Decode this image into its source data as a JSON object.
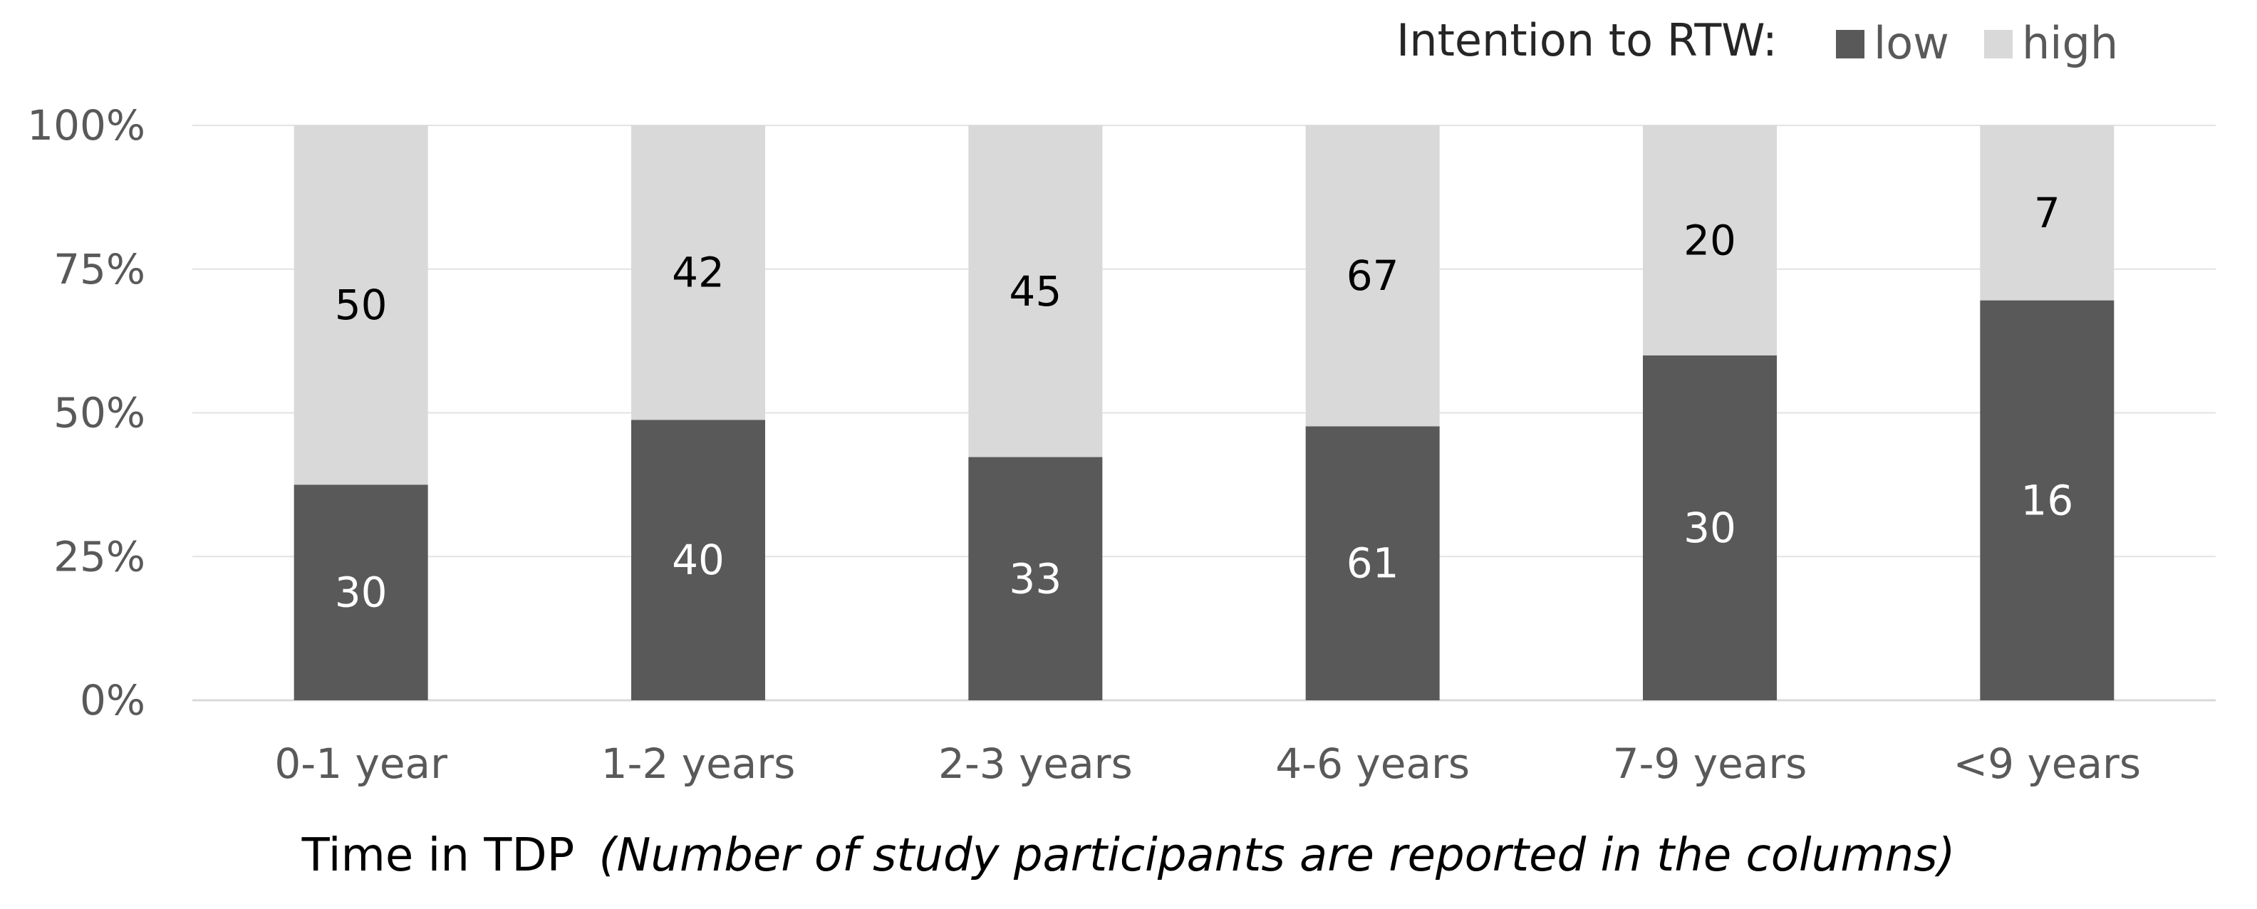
{
  "chart_data": {
    "type": "bar",
    "stacked": true,
    "normalized": true,
    "categories": [
      "0-1 year",
      "1-2 years",
      "2-3 years",
      "4-6 years",
      "7-9 years",
      "<9 years"
    ],
    "series": [
      {
        "name": "low",
        "values": [
          30,
          40,
          33,
          61,
          30,
          16
        ],
        "color": "#595959",
        "label_color": "#ffffff"
      },
      {
        "name": "high",
        "values": [
          50,
          42,
          45,
          67,
          20,
          7
        ],
        "color": "#d9d9d9",
        "label_color": "#000000"
      }
    ],
    "yticks": [
      "0%",
      "25%",
      "50%",
      "75%",
      "100%"
    ],
    "ylim": [
      0,
      100
    ],
    "legend_title": "Intention to RTW:",
    "xlabel": "Time in TDP",
    "xlabel_note": "(Number of study participants are reported in the columns)",
    "grid": true,
    "legend_position": "top-right"
  }
}
